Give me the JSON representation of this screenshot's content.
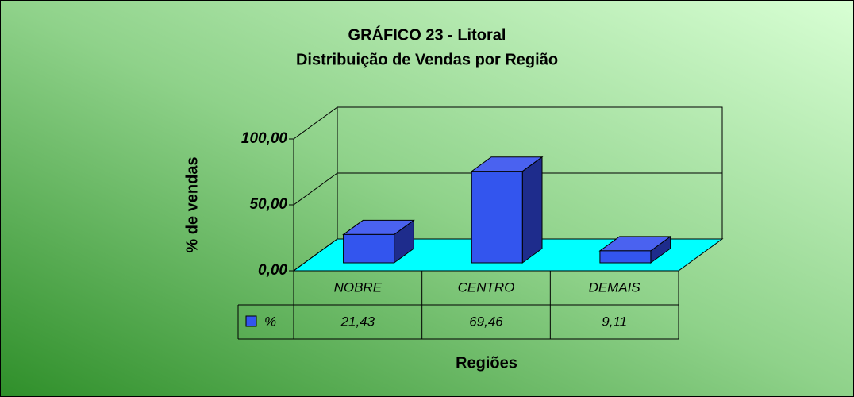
{
  "chart_data": {
    "type": "bar3d",
    "title": "GRÁFICO 23 - Litoral",
    "subtitle": "Distribuição de Vendas por Região",
    "y_label": "% de vendas",
    "x_label": "Regiões",
    "categories": [
      "NOBRE",
      "CENTRO",
      "DEMAIS"
    ],
    "series": [
      {
        "name": "%",
        "color": "#3355ee",
        "values": [
          21.43,
          69.46,
          9.11
        ],
        "value_labels": [
          "21,43",
          "69,46",
          "9,11"
        ]
      }
    ],
    "ylim": [
      0,
      100
    ],
    "yticks": [
      {
        "value": 0,
        "label": "0,00"
      },
      {
        "value": 50,
        "label": "50,00"
      },
      {
        "value": 100,
        "label": "100,00"
      }
    ],
    "grid": true,
    "floor_color": "#00ffff"
  }
}
